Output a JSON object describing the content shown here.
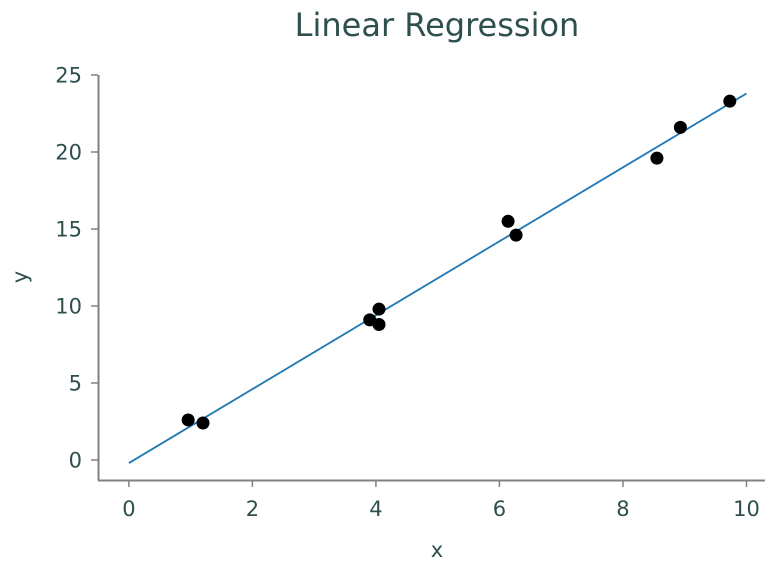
{
  "chart_data": {
    "type": "scatter",
    "title": "Linear Regression",
    "xlabel": "x",
    "ylabel": "y",
    "xlim": [
      -0.5,
      10.3
    ],
    "ylim": [
      -1.3,
      25.0
    ],
    "xticks": [
      0,
      2,
      4,
      6,
      8,
      10
    ],
    "yticks": [
      0,
      5,
      10,
      15,
      20,
      25
    ],
    "grid": false,
    "points": {
      "x": [
        0.96,
        1.2,
        3.9,
        4.05,
        4.05,
        6.14,
        6.27,
        8.55,
        8.93,
        9.73
      ],
      "y": [
        2.6,
        2.4,
        9.1,
        9.8,
        8.8,
        15.5,
        14.6,
        19.6,
        21.6,
        23.3
      ],
      "color": "#000000"
    },
    "fit_line": {
      "x": [
        0,
        10
      ],
      "y": [
        -0.2,
        23.8
      ],
      "color": "#1f77b4"
    }
  }
}
